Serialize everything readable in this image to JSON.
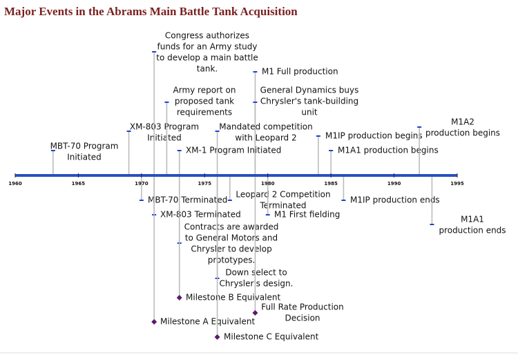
{
  "title": "Major Events in the Abrams Main Battle Tank Acquisition",
  "timeline": {
    "xlim": [
      1960,
      1995
    ],
    "xticks": [
      1960,
      1965,
      1970,
      1975,
      1980,
      1985,
      1990,
      1995
    ],
    "events": [
      {
        "year": 1963,
        "lines": [
          "MBT-70 Program",
          "Initiated"
        ]
      },
      {
        "year": 1969,
        "lines": [
          "XM-803 Program",
          "Initiated"
        ]
      },
      {
        "year": 1971,
        "lines": [
          "Congress authorizes",
          "funds for an Army study",
          "to develop a main battle",
          "tank."
        ]
      },
      {
        "year": 1972,
        "lines": [
          "Army report on",
          "proposed tank",
          "requirements"
        ]
      },
      {
        "year": 1973,
        "lines": [
          "XM-1 Program Initiated"
        ]
      },
      {
        "year": 1976,
        "lines": [
          "Mandated competition",
          "with Leopard 2"
        ]
      },
      {
        "year": 1979,
        "lines": [
          "M1 Full production"
        ]
      },
      {
        "year": 1979,
        "lines": [
          "General Dynamics buys",
          "Chrysler's tank-building",
          "unit"
        ]
      },
      {
        "year": 1984,
        "lines": [
          "M1IP production begins"
        ]
      },
      {
        "year": 1985,
        "lines": [
          "M1A1 production begins"
        ]
      },
      {
        "year": 1992,
        "lines": [
          "M1A2",
          "production begins"
        ]
      },
      {
        "year": 1970,
        "lines": [
          "MBT-70 Terminated"
        ]
      },
      {
        "year": 1971,
        "lines": [
          "XM-803 Terminated"
        ]
      },
      {
        "year": 1973,
        "lines": [
          "Contracts are awarded",
          "to General Motors and",
          "Chrysler to develop",
          "prototypes."
        ]
      },
      {
        "year": 1973,
        "lines": [
          "Milestone B Equivalent"
        ]
      },
      {
        "year": 1971,
        "lines": [
          "Milestone A Equivalent"
        ]
      },
      {
        "year": 1977,
        "lines": [
          "Leopard 2 Competition",
          "Terminated"
        ]
      },
      {
        "year": 1976,
        "lines": [
          "Down select to",
          "Chrysler's design."
        ]
      },
      {
        "year": 1976,
        "lines": [
          "Milestone C Equivalent"
        ]
      },
      {
        "year": 1980,
        "lines": [
          "M1 First fielding"
        ]
      },
      {
        "year": 1979,
        "lines": [
          "Full Rate Production",
          "Decision"
        ]
      },
      {
        "year": 1986,
        "lines": [
          "M1IP production ends"
        ]
      },
      {
        "year": 1993,
        "lines": [
          "M1A1",
          "production ends"
        ]
      }
    ]
  }
}
